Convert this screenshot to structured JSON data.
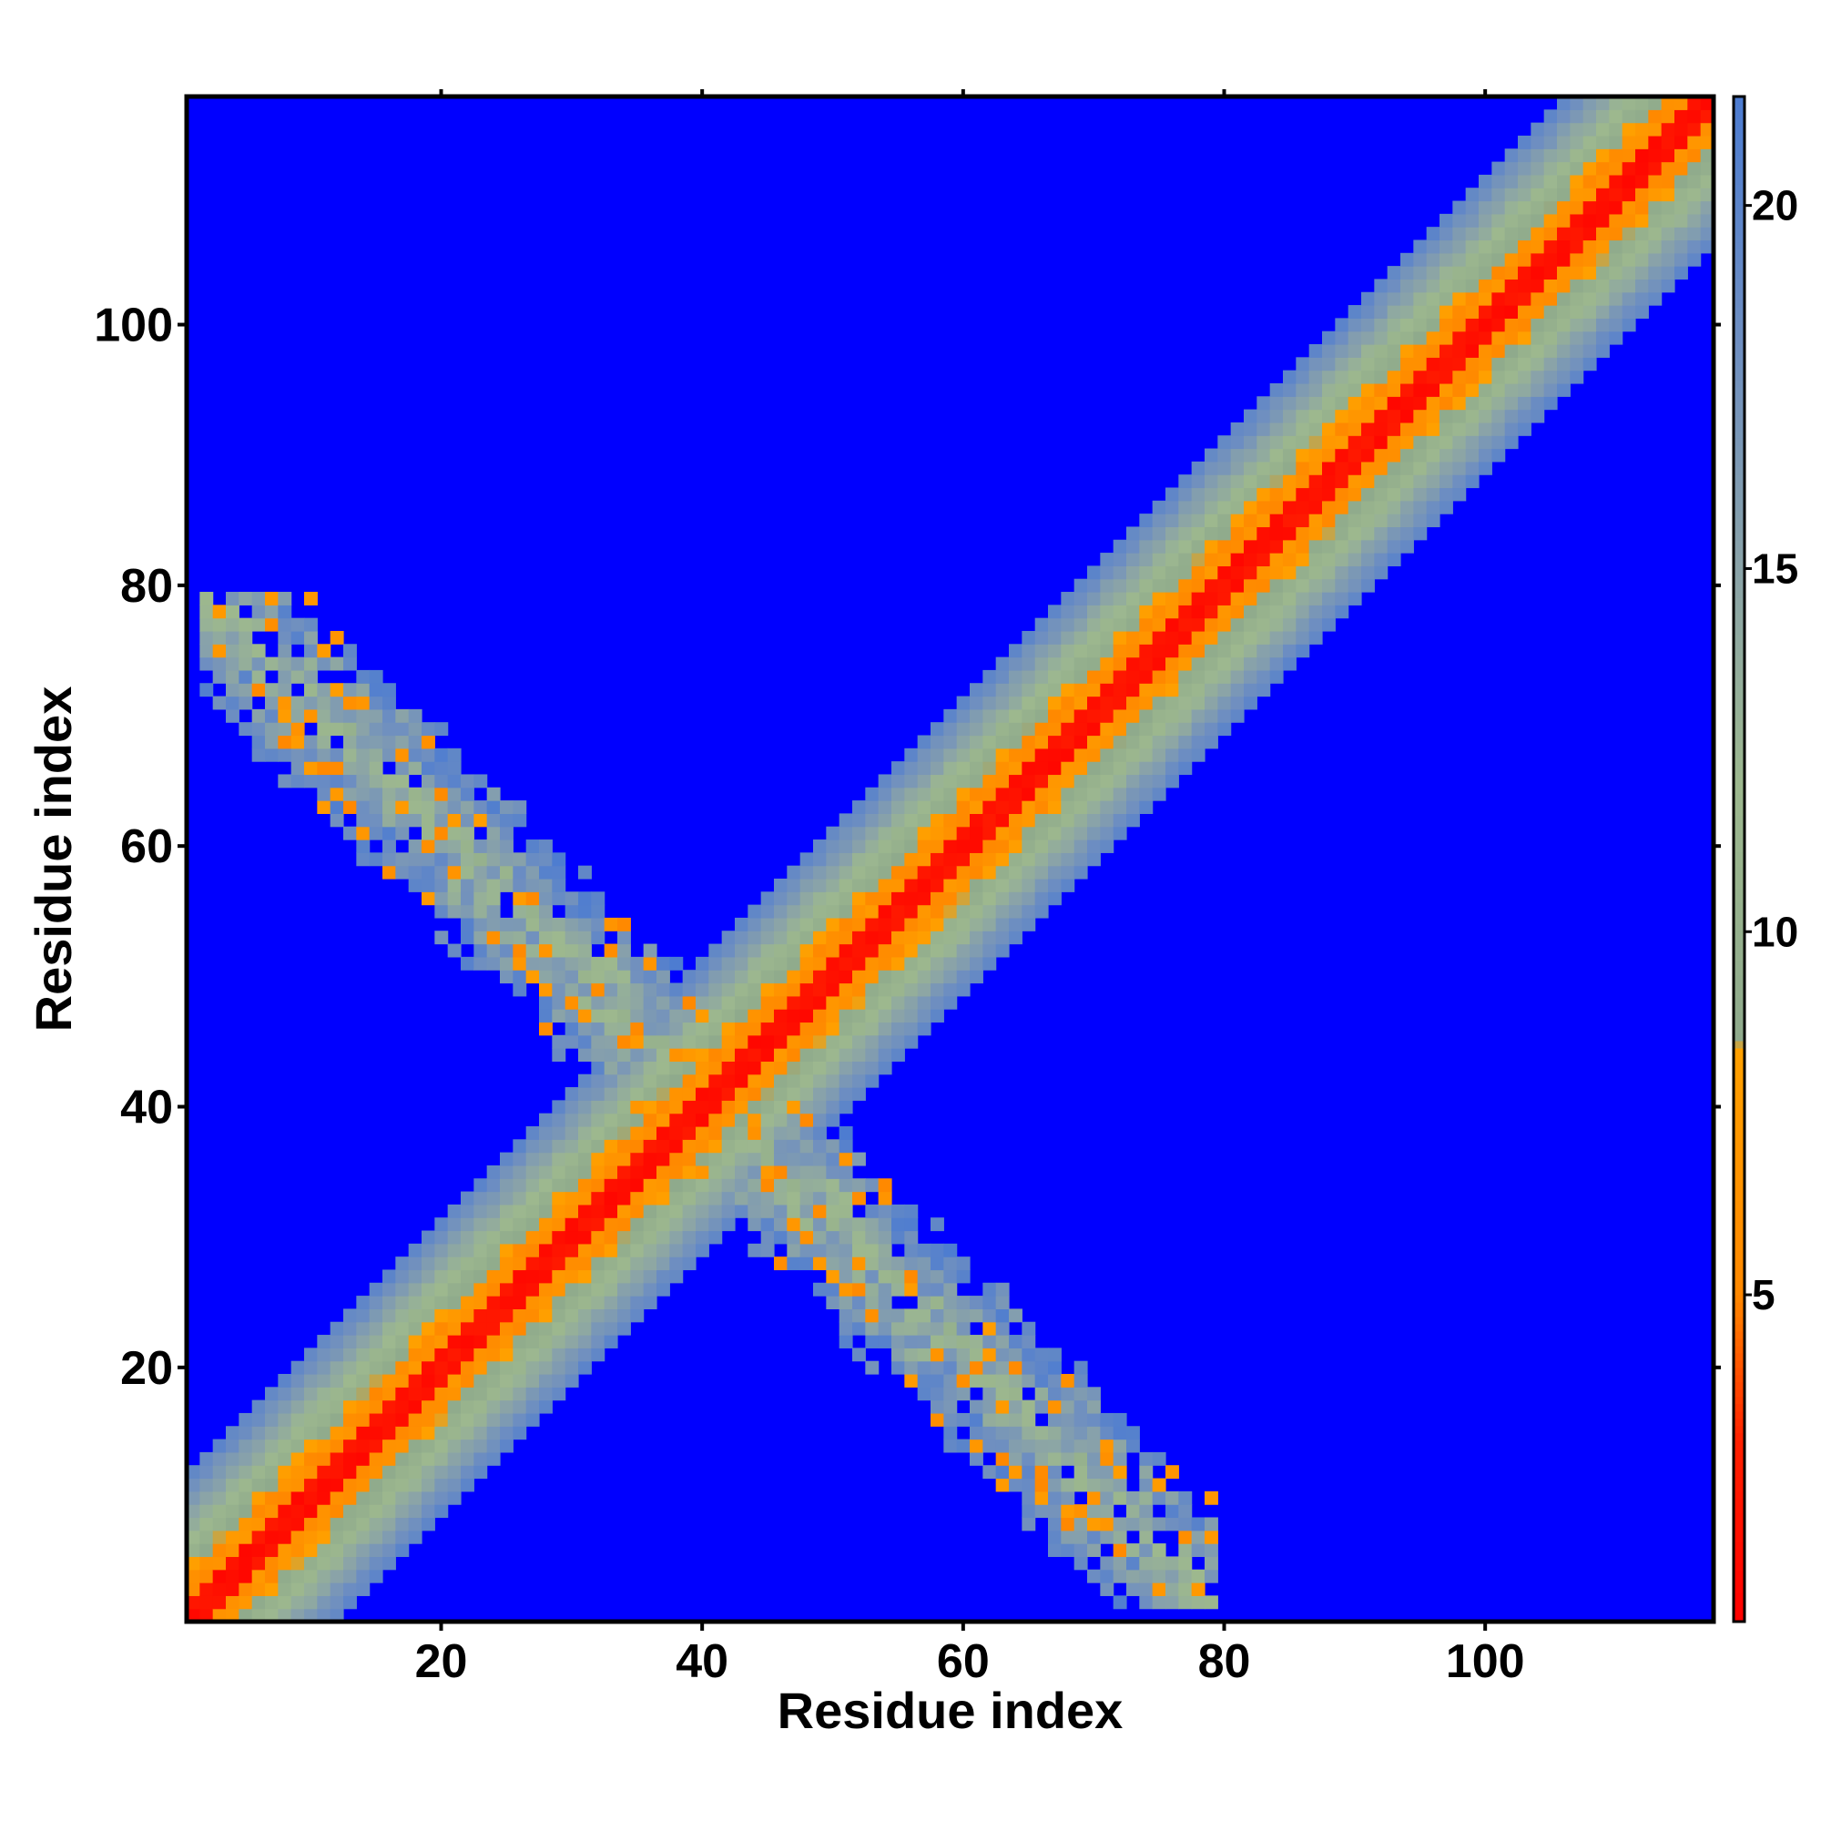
{
  "chart_data": {
    "type": "heatmap",
    "title": "",
    "xlabel": "Residue index",
    "ylabel": "Residue index",
    "xlim": [
      0.5,
      117.5
    ],
    "ylim": [
      0.5,
      117.5
    ],
    "n_residues": 117,
    "x_ticks": [
      20,
      40,
      60,
      80,
      100
    ],
    "y_ticks": [
      20,
      40,
      60,
      80,
      100
    ],
    "x_tick_labels": [
      "20",
      "40",
      "60",
      "80",
      "100"
    ],
    "y_tick_labels": [
      "20",
      "40",
      "60",
      "80",
      "100"
    ],
    "value_description": "pairwise residue distance map; diagonal band plus an anti-diagonal contact region between residues ~1-40 and ~40-80",
    "colorbar": {
      "range": [
        0.5,
        21.5
      ],
      "ticks": [
        5,
        10,
        15,
        20
      ],
      "tick_labels": [
        "5",
        "10",
        "15",
        "20"
      ],
      "colors": {
        "very_near": "#ff0000",
        "near": "#ff7f00",
        "mid": "#9fb890",
        "far": "#6e8fc4",
        "background": "#0000ff"
      },
      "stops": [
        {
          "value": 0.5,
          "color": "#ff0000"
        },
        {
          "value": 3.0,
          "color": "#ff2000"
        },
        {
          "value": 5.0,
          "color": "#ff8800"
        },
        {
          "value": 8.4,
          "color": "#ffa000"
        },
        {
          "value": 8.5,
          "color": "#8faa8c"
        },
        {
          "value": 12.0,
          "color": "#9db88e"
        },
        {
          "value": 15.0,
          "color": "#8aa3a8"
        },
        {
          "value": 18.0,
          "color": "#6f8fc0"
        },
        {
          "value": 21.5,
          "color": "#4d7cd1"
        }
      ]
    },
    "bands": {
      "diagonal": {
        "center_offset": 0,
        "red_halfwidth": 2.5,
        "orange_halfwidth": 4.5,
        "band_halfwidth": 11
      },
      "antidiagonal": {
        "x_plus_y_center": 81,
        "x_plus_y_halfwidth": 6,
        "x_range": [
          2,
          40
        ],
        "y_range": [
          40,
          79
        ]
      }
    }
  }
}
